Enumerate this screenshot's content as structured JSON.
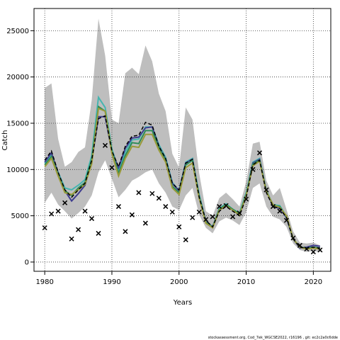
{
  "chart_data": {
    "type": "line",
    "xlabel": "Years",
    "ylabel": "Catch",
    "footer": "stockassessment.org, Cod_7ek_WGCSE2022, r16196 , git: ec2c2a0c6dde",
    "x": [
      1980,
      1981,
      1982,
      1983,
      1984,
      1985,
      1986,
      1987,
      1988,
      1989,
      1990,
      1991,
      1992,
      1993,
      1994,
      1995,
      1996,
      1997,
      1998,
      1999,
      2000,
      2001,
      2002,
      2003,
      2004,
      2005,
      2006,
      2007,
      2008,
      2009,
      2010,
      2011,
      2012,
      2013,
      2014,
      2015,
      2016,
      2017,
      2018,
      2019,
      2020,
      2021
    ],
    "xlim": [
      1978.4,
      2022.6
    ],
    "xticks": [
      1980,
      1990,
      2000,
      2010,
      2020
    ],
    "ylim": [
      -1000,
      27400
    ],
    "yticks": [
      0,
      5000,
      10000,
      15000,
      20000,
      25000
    ],
    "grid": true,
    "band": {
      "color": "#bebebe",
      "upper": [
        18800,
        19300,
        13300,
        10300,
        10800,
        11900,
        12400,
        17500,
        26300,
        22300,
        15400,
        15000,
        20400,
        21000,
        20300,
        23400,
        21700,
        18200,
        16300,
        11700,
        10200,
        16700,
        15400,
        9600,
        5500,
        5000,
        6900,
        7500,
        6800,
        6000,
        8700,
        12800,
        13000,
        8800,
        7200,
        8000,
        5700,
        3300,
        2100,
        2000,
        2100,
        1800
      ],
      "lower": [
        6400,
        7500,
        6200,
        5500,
        4700,
        5300,
        6000,
        7200,
        9700,
        11000,
        9000,
        7000,
        7800,
        8800,
        9200,
        9700,
        10000,
        8500,
        7500,
        6000,
        5600,
        7200,
        8000,
        5100,
        3700,
        3100,
        4400,
        4800,
        4500,
        4000,
        5400,
        8000,
        8500,
        6000,
        4900,
        4600,
        3800,
        2000,
        1300,
        1100,
        1200,
        1100
      ]
    },
    "series": [
      {
        "color": "#46b5b0",
        "values": [
          10700,
          11600,
          9700,
          8000,
          7800,
          8300,
          8900,
          11500,
          17800,
          16700,
          12200,
          10000,
          11900,
          13200,
          13300,
          14600,
          14600,
          12700,
          11300,
          8600,
          7700,
          10800,
          11200,
          7300,
          4400,
          3800,
          5800,
          6300,
          5700,
          5300,
          7500,
          10800,
          11200,
          7700,
          6200,
          6100,
          4900,
          2500,
          1600,
          1500,
          1600,
          1500
        ]
      },
      {
        "color": "#3f3d8f",
        "values": [
          10800,
          11800,
          9600,
          7700,
          6600,
          7400,
          8300,
          10900,
          15700,
          15700,
          11900,
          10200,
          12300,
          13400,
          13500,
          14500,
          14600,
          12500,
          11100,
          8500,
          7700,
          10700,
          11100,
          7100,
          4400,
          3800,
          5700,
          6200,
          5600,
          5100,
          7300,
          10700,
          11100,
          7700,
          6000,
          5800,
          4800,
          2500,
          1500,
          1600,
          1800,
          1700
        ]
      },
      {
        "color": "#2e8b57",
        "values": [
          10500,
          11400,
          9500,
          7700,
          7200,
          8000,
          8600,
          11100,
          16800,
          16300,
          12000,
          9600,
          11500,
          12900,
          12800,
          14200,
          14200,
          12400,
          11000,
          8200,
          7500,
          10500,
          11000,
          7100,
          4300,
          3800,
          5700,
          6200,
          5700,
          5200,
          7300,
          10600,
          11000,
          7700,
          6100,
          6000,
          4900,
          2500,
          1600,
          1500,
          1600,
          1500
        ]
      },
      {
        "color": "#9a9a3a",
        "values": [
          10300,
          11200,
          9300,
          7500,
          7300,
          7800,
          8400,
          10600,
          16600,
          16300,
          11700,
          9300,
          11200,
          12500,
          12400,
          13800,
          13800,
          12100,
          10800,
          8000,
          7300,
          10200,
          10700,
          6900,
          4200,
          3700,
          5600,
          6100,
          5600,
          5100,
          7200,
          10400,
          10900,
          7600,
          6200,
          5900,
          5000,
          2500,
          1600,
          1400,
          1500,
          1400
        ]
      },
      {
        "color": "#000000",
        "dashed": true,
        "values": [
          11000,
          12000,
          9700,
          7800,
          7000,
          7800,
          8500,
          11000,
          15500,
          15800,
          12000,
          10300,
          12500,
          13600,
          13700,
          15100,
          14800,
          12500,
          11200,
          8500,
          7800,
          10700,
          11100,
          7000,
          4500,
          3800,
          5500,
          6000,
          5500,
          5000,
          7000,
          10500,
          11000,
          7500,
          6000,
          5800,
          4800,
          2500,
          1600,
          1500,
          1600,
          1500
        ]
      }
    ],
    "observed": {
      "marker": "x",
      "color": "#000000",
      "values": [
        3700,
        5200,
        5500,
        6400,
        2500,
        3500,
        5500,
        4700,
        3100,
        12600,
        10200,
        6000,
        3300,
        5100,
        7500,
        4200,
        7400,
        6900,
        6000,
        5400,
        3800,
        2400,
        4800,
        5400,
        4600,
        4900,
        6000,
        6100,
        4900,
        5300,
        6800,
        10000,
        11800,
        7800,
        6000,
        5500,
        4500,
        2600,
        1800,
        1400,
        1100,
        1300
      ]
    }
  }
}
